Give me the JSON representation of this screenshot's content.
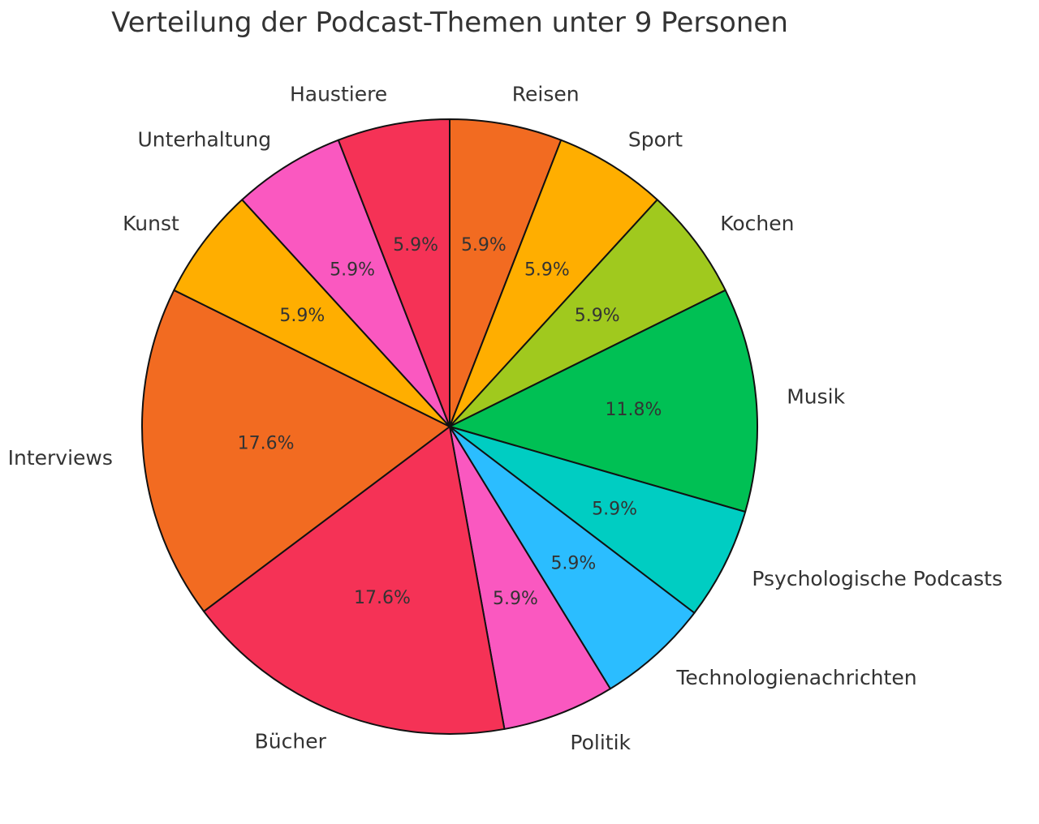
{
  "chart_data": {
    "type": "pie",
    "title": "Verteilung der Podcast-Themen unter 9 Personen",
    "start_angle_deg": 90,
    "direction": "clockwise",
    "slices": [
      {
        "label": "Reisen",
        "value": 5.9,
        "pct_label": "5.9%",
        "color": "#F26B21"
      },
      {
        "label": "Sport",
        "value": 5.9,
        "pct_label": "5.9%",
        "color": "#FFAE00"
      },
      {
        "label": "Kochen",
        "value": 5.9,
        "pct_label": "5.9%",
        "color": "#A0C91E"
      },
      {
        "label": "Musik",
        "value": 11.8,
        "pct_label": "11.8%",
        "color": "#00C054"
      },
      {
        "label": "Psychologische Podcasts",
        "value": 5.9,
        "pct_label": "5.9%",
        "color": "#00CDC2"
      },
      {
        "label": "Technologienachrichten",
        "value": 5.9,
        "pct_label": "5.9%",
        "color": "#2BBDFF"
      },
      {
        "label": "Politik",
        "value": 5.9,
        "pct_label": "5.9%",
        "color": "#FA58C0"
      },
      {
        "label": "Bücher",
        "value": 17.6,
        "pct_label": "17.6%",
        "color": "#F53256"
      },
      {
        "label": "Interviews",
        "value": 17.6,
        "pct_label": "17.6%",
        "color": "#F26B21"
      },
      {
        "label": "Kunst",
        "value": 5.9,
        "pct_label": "5.9%",
        "color": "#FFAE00"
      },
      {
        "label": "Unterhaltung",
        "value": 5.9,
        "pct_label": "5.9%",
        "color": "#FA58C0"
      },
      {
        "label": "Haustiere",
        "value": 5.9,
        "pct_label": "5.9%",
        "color": "#F53256"
      }
    ]
  }
}
